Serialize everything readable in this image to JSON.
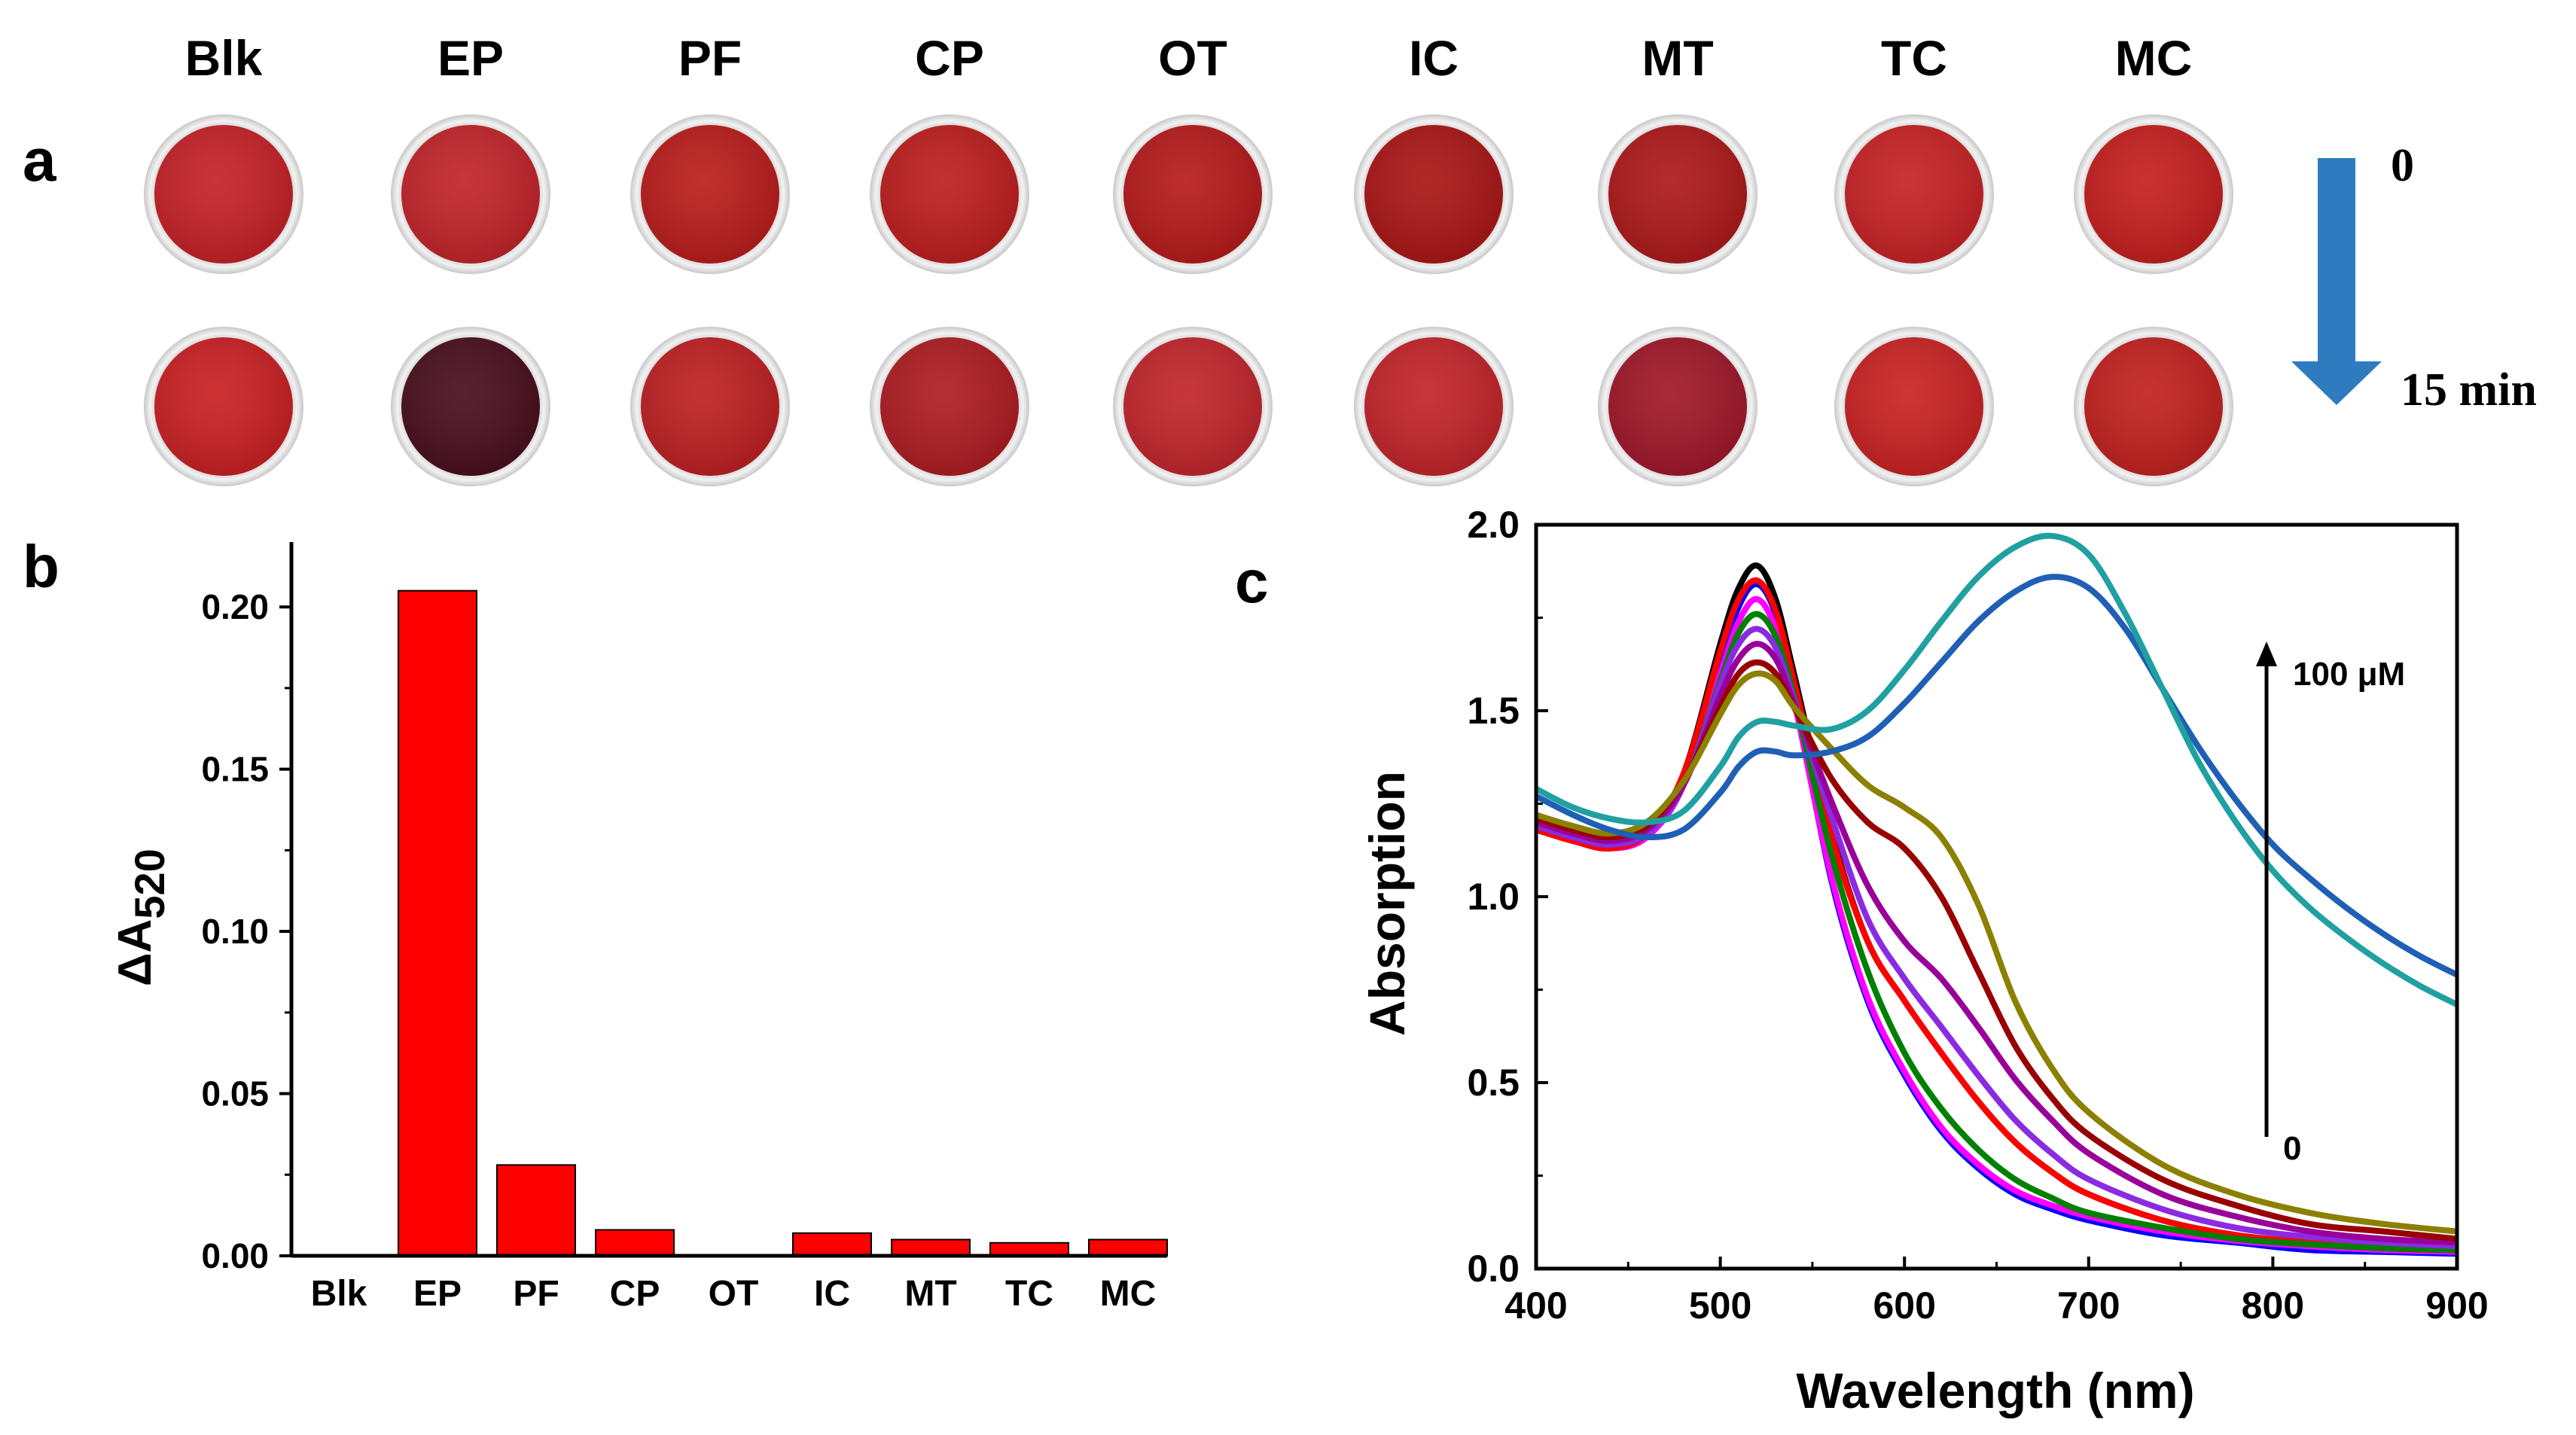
{
  "panel_a": {
    "letter": "a",
    "samples": [
      "Blk",
      "EP",
      "PF",
      "CP",
      "OT",
      "IC",
      "MT",
      "TC",
      "MC"
    ],
    "rows": [
      {
        "time_label": "0",
        "colors": [
          "#c42228",
          "#c1252a",
          "#b91e1c",
          "#bd1f1f",
          "#b61b1c",
          "#aa1717",
          "#ad1a1b",
          "#c62325",
          "#c4201f"
        ]
      },
      {
        "time_label": "15 min",
        "colors": [
          "#c92124",
          "#4a0f1f",
          "#bd2123",
          "#ad1d22",
          "#c1262c",
          "#c2252a",
          "#a0182a",
          "#c92324",
          "#c1221f"
        ]
      }
    ],
    "arrow_color": "#2e7bbf"
  },
  "chart_data": [
    {
      "type": "bar",
      "panel": "b",
      "title": "",
      "categories": [
        "Blk",
        "EP",
        "PF",
        "CP",
        "OT",
        "IC",
        "MT",
        "TC",
        "MC"
      ],
      "values": [
        0,
        0.205,
        0.028,
        0.008,
        0,
        0.007,
        0.005,
        0.004,
        0.005
      ],
      "ylabel_main": "ΔA",
      "ylabel_sub": "520",
      "xlabel": "",
      "ylim": [
        0,
        0.22
      ],
      "yticks": [
        0.0,
        0.05,
        0.1,
        0.15,
        0.2
      ],
      "ytick_labels": [
        "0.00",
        "0.05",
        "0.10",
        "0.15",
        "0.20"
      ],
      "bar_color": "#ff0000"
    },
    {
      "type": "line",
      "panel": "c",
      "title": "",
      "xlabel": "Wavelength (nm)",
      "ylabel": "Absorption",
      "xlim": [
        400,
        900
      ],
      "ylim": [
        0,
        2.0
      ],
      "xticks": [
        400,
        500,
        600,
        700,
        800,
        900
      ],
      "xtick_labels": [
        "400",
        "500",
        "600",
        "700",
        "800",
        "900"
      ],
      "yticks": [
        0.0,
        0.5,
        1.0,
        1.5,
        2.0
      ],
      "ytick_labels": [
        "0.0",
        "0.5",
        "1.0",
        "1.5",
        "2.0"
      ],
      "annotation_top": "100 μM",
      "annotation_bottom": "0",
      "series": [
        {
          "name": "c1",
          "color": "#0000ff",
          "x": [
            400,
            420,
            440,
            460,
            480,
            500,
            510,
            520,
            530,
            540,
            560,
            580,
            600,
            620,
            640,
            660,
            680,
            700,
            740,
            780,
            820,
            860,
            900
          ],
          "y": [
            1.18,
            1.15,
            1.13,
            1.16,
            1.3,
            1.62,
            1.78,
            1.84,
            1.76,
            1.55,
            1.05,
            0.72,
            0.52,
            0.37,
            0.27,
            0.2,
            0.16,
            0.13,
            0.09,
            0.07,
            0.05,
            0.045,
            0.04
          ]
        },
        {
          "name": "c2",
          "color": "#ff00ff",
          "x": [
            400,
            420,
            440,
            460,
            480,
            500,
            510,
            520,
            530,
            540,
            560,
            580,
            600,
            620,
            640,
            660,
            680,
            700,
            740,
            780,
            820,
            860,
            900
          ],
          "y": [
            1.18,
            1.15,
            1.13,
            1.16,
            1.3,
            1.6,
            1.74,
            1.8,
            1.72,
            1.53,
            1.06,
            0.73,
            0.53,
            0.38,
            0.28,
            0.21,
            0.17,
            0.14,
            0.1,
            0.075,
            0.06,
            0.05,
            0.045
          ]
        },
        {
          "name": "c3",
          "color": "#000000",
          "x": [
            400,
            420,
            440,
            460,
            480,
            500,
            510,
            520,
            530,
            540,
            560,
            580,
            600,
            620,
            640,
            660,
            680,
            700,
            740,
            780,
            820,
            860,
            900
          ],
          "y": [
            1.18,
            1.15,
            1.13,
            1.17,
            1.33,
            1.68,
            1.83,
            1.89,
            1.8,
            1.6,
            1.18,
            0.88,
            0.72,
            0.58,
            0.45,
            0.34,
            0.26,
            0.2,
            0.13,
            0.09,
            0.07,
            0.055,
            0.05
          ]
        },
        {
          "name": "c4",
          "color": "#ff0000",
          "x": [
            400,
            420,
            440,
            460,
            480,
            500,
            510,
            520,
            530,
            540,
            560,
            580,
            600,
            620,
            640,
            660,
            680,
            700,
            740,
            780,
            820,
            860,
            900
          ],
          "y": [
            1.18,
            1.15,
            1.13,
            1.17,
            1.33,
            1.66,
            1.8,
            1.85,
            1.77,
            1.58,
            1.17,
            0.88,
            0.72,
            0.58,
            0.45,
            0.34,
            0.26,
            0.2,
            0.13,
            0.09,
            0.07,
            0.055,
            0.05
          ]
        },
        {
          "name": "c5",
          "color": "#008000",
          "x": [
            400,
            420,
            440,
            460,
            480,
            500,
            510,
            520,
            530,
            540,
            560,
            580,
            600,
            620,
            640,
            660,
            680,
            700,
            740,
            780,
            820,
            860,
            900
          ],
          "y": [
            1.19,
            1.16,
            1.14,
            1.17,
            1.3,
            1.58,
            1.71,
            1.76,
            1.7,
            1.54,
            1.12,
            0.8,
            0.58,
            0.43,
            0.32,
            0.24,
            0.19,
            0.15,
            0.11,
            0.08,
            0.065,
            0.055,
            0.05
          ]
        },
        {
          "name": "c6",
          "color": "#8a2be2",
          "x": [
            400,
            420,
            440,
            460,
            480,
            500,
            510,
            520,
            530,
            540,
            560,
            580,
            600,
            620,
            640,
            660,
            680,
            700,
            740,
            780,
            820,
            860,
            900
          ],
          "y": [
            1.19,
            1.16,
            1.14,
            1.17,
            1.3,
            1.57,
            1.68,
            1.72,
            1.67,
            1.53,
            1.22,
            0.94,
            0.78,
            0.65,
            0.52,
            0.4,
            0.31,
            0.24,
            0.16,
            0.11,
            0.085,
            0.07,
            0.06
          ]
        },
        {
          "name": "c7",
          "color": "#990099",
          "x": [
            400,
            420,
            440,
            460,
            480,
            500,
            510,
            520,
            530,
            540,
            560,
            580,
            600,
            620,
            640,
            660,
            680,
            700,
            740,
            780,
            820,
            860,
            900
          ],
          "y": [
            1.2,
            1.17,
            1.15,
            1.18,
            1.3,
            1.54,
            1.64,
            1.68,
            1.64,
            1.52,
            1.26,
            1.03,
            0.88,
            0.78,
            0.65,
            0.51,
            0.4,
            0.31,
            0.2,
            0.14,
            0.1,
            0.08,
            0.07
          ]
        },
        {
          "name": "c8",
          "color": "#990000",
          "x": [
            400,
            420,
            440,
            460,
            480,
            500,
            510,
            520,
            530,
            540,
            560,
            580,
            600,
            620,
            640,
            660,
            680,
            700,
            740,
            780,
            820,
            860,
            900
          ],
          "y": [
            1.21,
            1.18,
            1.16,
            1.19,
            1.31,
            1.51,
            1.6,
            1.63,
            1.6,
            1.51,
            1.32,
            1.2,
            1.13,
            1.0,
            0.8,
            0.6,
            0.46,
            0.36,
            0.24,
            0.17,
            0.12,
            0.1,
            0.08
          ]
        },
        {
          "name": "c9",
          "color": "#8b8000",
          "x": [
            400,
            420,
            440,
            460,
            480,
            500,
            510,
            520,
            530,
            540,
            560,
            580,
            600,
            620,
            640,
            660,
            680,
            700,
            740,
            780,
            820,
            860,
            900
          ],
          "y": [
            1.22,
            1.19,
            1.17,
            1.2,
            1.31,
            1.49,
            1.57,
            1.6,
            1.58,
            1.51,
            1.4,
            1.3,
            1.24,
            1.16,
            0.98,
            0.72,
            0.54,
            0.42,
            0.28,
            0.2,
            0.15,
            0.12,
            0.1
          ]
        },
        {
          "name": "c10",
          "color": "#1f5fb5",
          "x": [
            400,
            420,
            440,
            460,
            480,
            500,
            510,
            520,
            530,
            540,
            560,
            580,
            600,
            620,
            640,
            660,
            680,
            700,
            720,
            740,
            760,
            780,
            800,
            820,
            840,
            860,
            880,
            900
          ],
          "y": [
            1.27,
            1.22,
            1.18,
            1.16,
            1.18,
            1.28,
            1.35,
            1.39,
            1.39,
            1.38,
            1.39,
            1.43,
            1.52,
            1.63,
            1.74,
            1.82,
            1.86,
            1.83,
            1.72,
            1.56,
            1.4,
            1.26,
            1.14,
            1.05,
            0.97,
            0.9,
            0.84,
            0.79
          ]
        },
        {
          "name": "c11",
          "color": "#20a0a0",
          "x": [
            400,
            420,
            440,
            460,
            480,
            500,
            510,
            520,
            530,
            540,
            560,
            580,
            600,
            620,
            640,
            660,
            680,
            700,
            720,
            740,
            760,
            780,
            800,
            820,
            840,
            860,
            880,
            900
          ],
          "y": [
            1.29,
            1.24,
            1.21,
            1.2,
            1.23,
            1.35,
            1.43,
            1.47,
            1.47,
            1.46,
            1.45,
            1.5,
            1.61,
            1.74,
            1.86,
            1.94,
            1.97,
            1.92,
            1.76,
            1.56,
            1.36,
            1.2,
            1.07,
            0.97,
            0.89,
            0.82,
            0.76,
            0.71
          ]
        }
      ]
    }
  ]
}
